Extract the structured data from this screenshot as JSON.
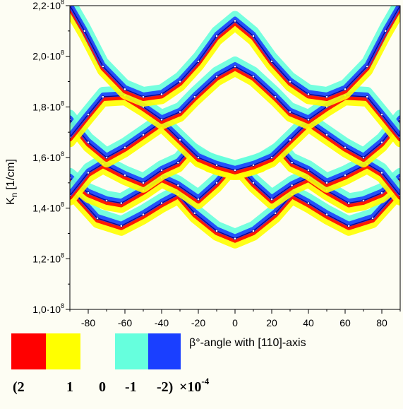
{
  "chart_data": {
    "type": "line",
    "x_axis": {
      "label": "β°-angle with [110]-axis",
      "range": [
        -90,
        90
      ],
      "ticks": [
        -80,
        -60,
        -40,
        -20,
        0,
        20,
        40,
        60,
        80
      ],
      "tick_labels": [
        "-80",
        "-60",
        "-40",
        "-20",
        "0",
        "20",
        "40",
        "60",
        "80"
      ]
    },
    "y_axis": {
      "label": "K_n [1/cm]",
      "label_main": "K",
      "label_sub": "n",
      "label_unit": "[1/cm]",
      "range": [
        100000000,
        220000000
      ],
      "ticks": [
        100000000,
        120000000,
        140000000,
        160000000,
        180000000,
        200000000,
        220000000
      ],
      "tick_mantissas": [
        "1,0·10",
        "1,2·10",
        "1,4·10",
        "1,6·10",
        "1,8·10",
        "2,0·10",
        "2,2·10"
      ],
      "tick_exponent": "8"
    },
    "grid": false,
    "legend": {
      "placement": "bottom-left",
      "scale_factor": "×10",
      "scale_exponent": "-4",
      "entries": [
        {
          "value": "(2",
          "color": "#ff0000"
        },
        {
          "value": "1",
          "color": "#ffff00"
        },
        {
          "value": "0",
          "color": "#fdfdf3"
        },
        {
          "value": "-1",
          "color": "#66ffdd"
        },
        {
          "value": "-2)",
          "color": "#1a3fff"
        }
      ]
    },
    "colors": {
      "strong_positive": "#ff0000",
      "positive": "#ffff00",
      "negative": "#66ffdd",
      "strong_negative": "#1a3fff",
      "line_core": "#000080"
    },
    "series": [
      {
        "x": [
          -90,
          -75,
          -62,
          -50,
          -40,
          -31,
          -22,
          -10,
          0,
          10,
          22,
          31,
          40,
          50,
          62,
          75,
          90
        ],
        "y": [
          148000000,
          136000000,
          133000000,
          137500000,
          142000000,
          145500000,
          138000000,
          131000000,
          128000000,
          131000000,
          138000000,
          145500000,
          142000000,
          137500000,
          133000000,
          136000000,
          148000000
        ]
      },
      {
        "x": [
          -90,
          -80,
          -70,
          -62,
          -50,
          -40,
          -31,
          -20,
          -10,
          -4,
          0,
          4,
          10,
          20,
          31,
          40,
          50,
          62,
          70,
          80,
          90
        ],
        "y": [
          152000000,
          146000000,
          143000000,
          142000000,
          147000000,
          152000000,
          149000000,
          143500000,
          150000000,
          155000000,
          155000000,
          155000000,
          150000000,
          143500000,
          149000000,
          152000000,
          147000000,
          142000000,
          143000000,
          146000000,
          152000000
        ]
      },
      {
        "x": [
          -90,
          -80,
          -72,
          -60,
          -50,
          -40,
          -31,
          -25,
          -14,
          0,
          14,
          25,
          31,
          40,
          50,
          60,
          72,
          80,
          90
        ],
        "y": [
          145000000,
          154000000,
          157500000,
          153000000,
          150000000,
          155000000,
          158000000,
          163000000,
          158000000,
          155000000,
          158000000,
          163000000,
          158000000,
          155000000,
          150000000,
          153000000,
          157500000,
          154000000,
          145000000
        ]
      },
      {
        "x": [
          -90,
          -80,
          -70,
          -60,
          -50,
          -40,
          -30,
          -20,
          -10,
          0,
          10,
          20,
          30,
          40,
          50,
          60,
          70,
          80,
          90
        ],
        "y": [
          175000000,
          166000000,
          160000000,
          164000000,
          169000000,
          174000000,
          167000000,
          160000000,
          157000000,
          155000000,
          157000000,
          160000000,
          167000000,
          174000000,
          169000000,
          164000000,
          160000000,
          166000000,
          175000000
        ]
      },
      {
        "x": [
          -90,
          -80,
          -72,
          -60,
          -50,
          -40,
          -30,
          -22,
          -10,
          0,
          10,
          22,
          30,
          40,
          50,
          60,
          72,
          80,
          90
        ],
        "y": [
          168000000,
          177000000,
          184000000,
          184500000,
          180000000,
          175000000,
          178000000,
          184000000,
          192000000,
          196000000,
          192000000,
          184000000,
          178000000,
          175000000,
          180000000,
          184500000,
          184000000,
          177000000,
          168000000
        ]
      },
      {
        "x": [
          -90,
          -82,
          -72,
          -60,
          -50,
          -40,
          -30,
          -20,
          -10,
          0,
          10,
          20,
          30,
          40,
          50,
          60,
          72,
          82,
          90
        ],
        "y": [
          220000000,
          210000000,
          196000000,
          187000000,
          184000000,
          185000000,
          190000000,
          198000000,
          208000000,
          214000000,
          208000000,
          198000000,
          190000000,
          185000000,
          184000000,
          187000000,
          196000000,
          210000000,
          220000000
        ]
      }
    ]
  }
}
